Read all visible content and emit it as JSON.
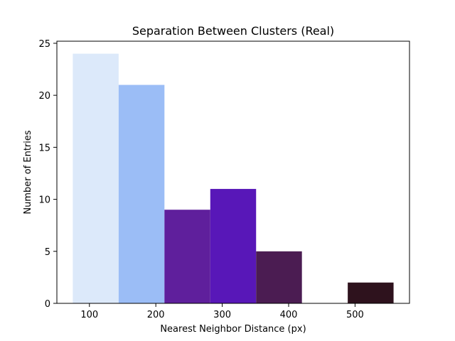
{
  "chart_data": {
    "type": "bar",
    "title": "Separation Between Clusters (Real)",
    "xlabel": "Nearest Neighbor Distance (px)",
    "ylabel": "Number of Entries",
    "bins": [
      {
        "x0": 75,
        "x1": 144,
        "value": 24,
        "color": "#dce9fa"
      },
      {
        "x0": 144,
        "x1": 213,
        "value": 21,
        "color": "#9bbdf6"
      },
      {
        "x0": 213,
        "x1": 282,
        "value": 9,
        "color": "#5f1f9c"
      },
      {
        "x0": 282,
        "x1": 351,
        "value": 11,
        "color": "#5817b8"
      },
      {
        "x0": 351,
        "x1": 420,
        "value": 5,
        "color": "#4b1c52"
      },
      {
        "x0": 420,
        "x1": 489,
        "value": 0,
        "color": "#3a1a40"
      },
      {
        "x0": 489,
        "x1": 558,
        "value": 2,
        "color": "#2e121d"
      }
    ],
    "xlim": [
      51,
      582
    ],
    "ylim": [
      0,
      25.2
    ],
    "xticks": [
      100,
      200,
      300,
      400,
      500
    ],
    "yticks": [
      0,
      5,
      10,
      15,
      20,
      25
    ],
    "grid": false,
    "legend": "none"
  }
}
